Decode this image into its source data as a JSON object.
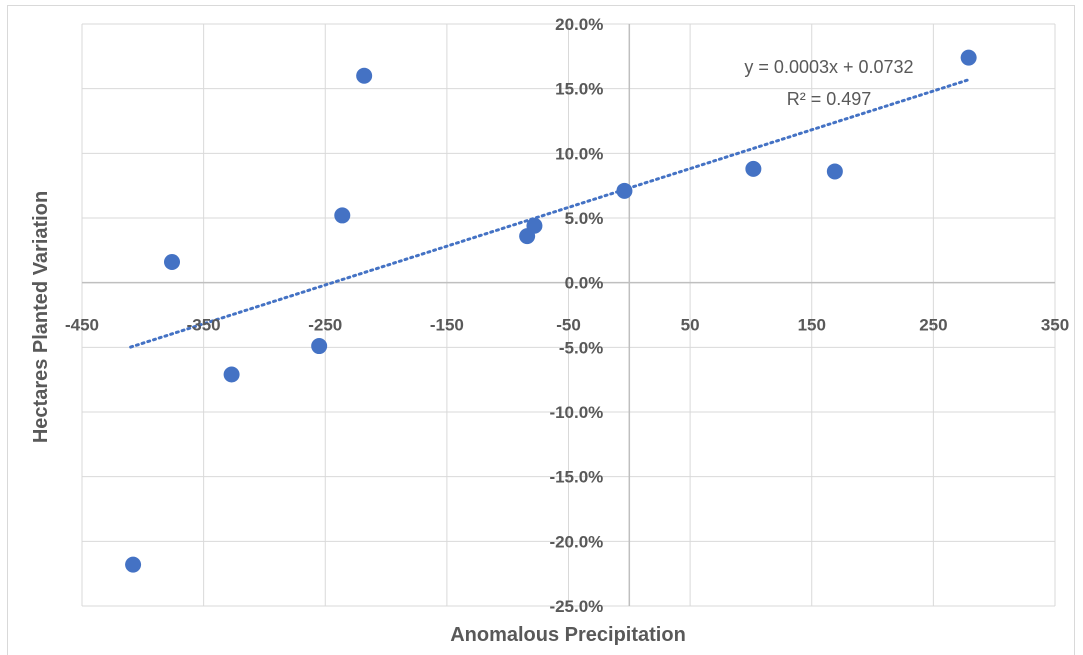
{
  "chart_data": {
    "type": "scatter",
    "title": "",
    "xlabel": "Anomalous Precipitation",
    "ylabel": "Hectares Planted Variation",
    "xlim": [
      -450,
      350
    ],
    "ylim": [
      -0.25,
      0.2
    ],
    "x_ticks": [
      -450,
      -350,
      -250,
      -150,
      -50,
      50,
      150,
      250,
      350
    ],
    "x_tick_labels": [
      "-450",
      "-350",
      "-250",
      "-150",
      "-50",
      "50",
      "150",
      "250",
      "350"
    ],
    "y_ticks": [
      0.2,
      0.15,
      0.1,
      0.05,
      0,
      -0.05,
      -0.1,
      -0.15,
      -0.2,
      -0.25
    ],
    "y_tick_labels": [
      "20.0%",
      "15.0%",
      "10.0%",
      "5.0%",
      "0.0%",
      "-5.0%",
      "-10.0%",
      "-15.0%",
      "-20.0%",
      "-25.0%"
    ],
    "grid": true,
    "marker_color": "#4472c4",
    "trendline_color": "#4472c4",
    "points": [
      {
        "x": -408,
        "y": -0.218
      },
      {
        "x": -376,
        "y": 0.016
      },
      {
        "x": -327,
        "y": -0.071
      },
      {
        "x": -255,
        "y": -0.049
      },
      {
        "x": -236,
        "y": 0.052
      },
      {
        "x": -218,
        "y": 0.16
      },
      {
        "x": -84,
        "y": 0.036
      },
      {
        "x": -78,
        "y": 0.044
      },
      {
        "x": -4,
        "y": 0.071
      },
      {
        "x": 102,
        "y": 0.088
      },
      {
        "x": 169,
        "y": 0.086
      },
      {
        "x": 279,
        "y": 0.174
      }
    ],
    "trendline": {
      "type": "linear",
      "slope": 0.0003,
      "intercept": 0.0732,
      "x_range": [
        -410,
        279
      ],
      "equation_label": "y = 0.0003x + 0.0732",
      "r2_label": "R² = 0.497"
    }
  }
}
